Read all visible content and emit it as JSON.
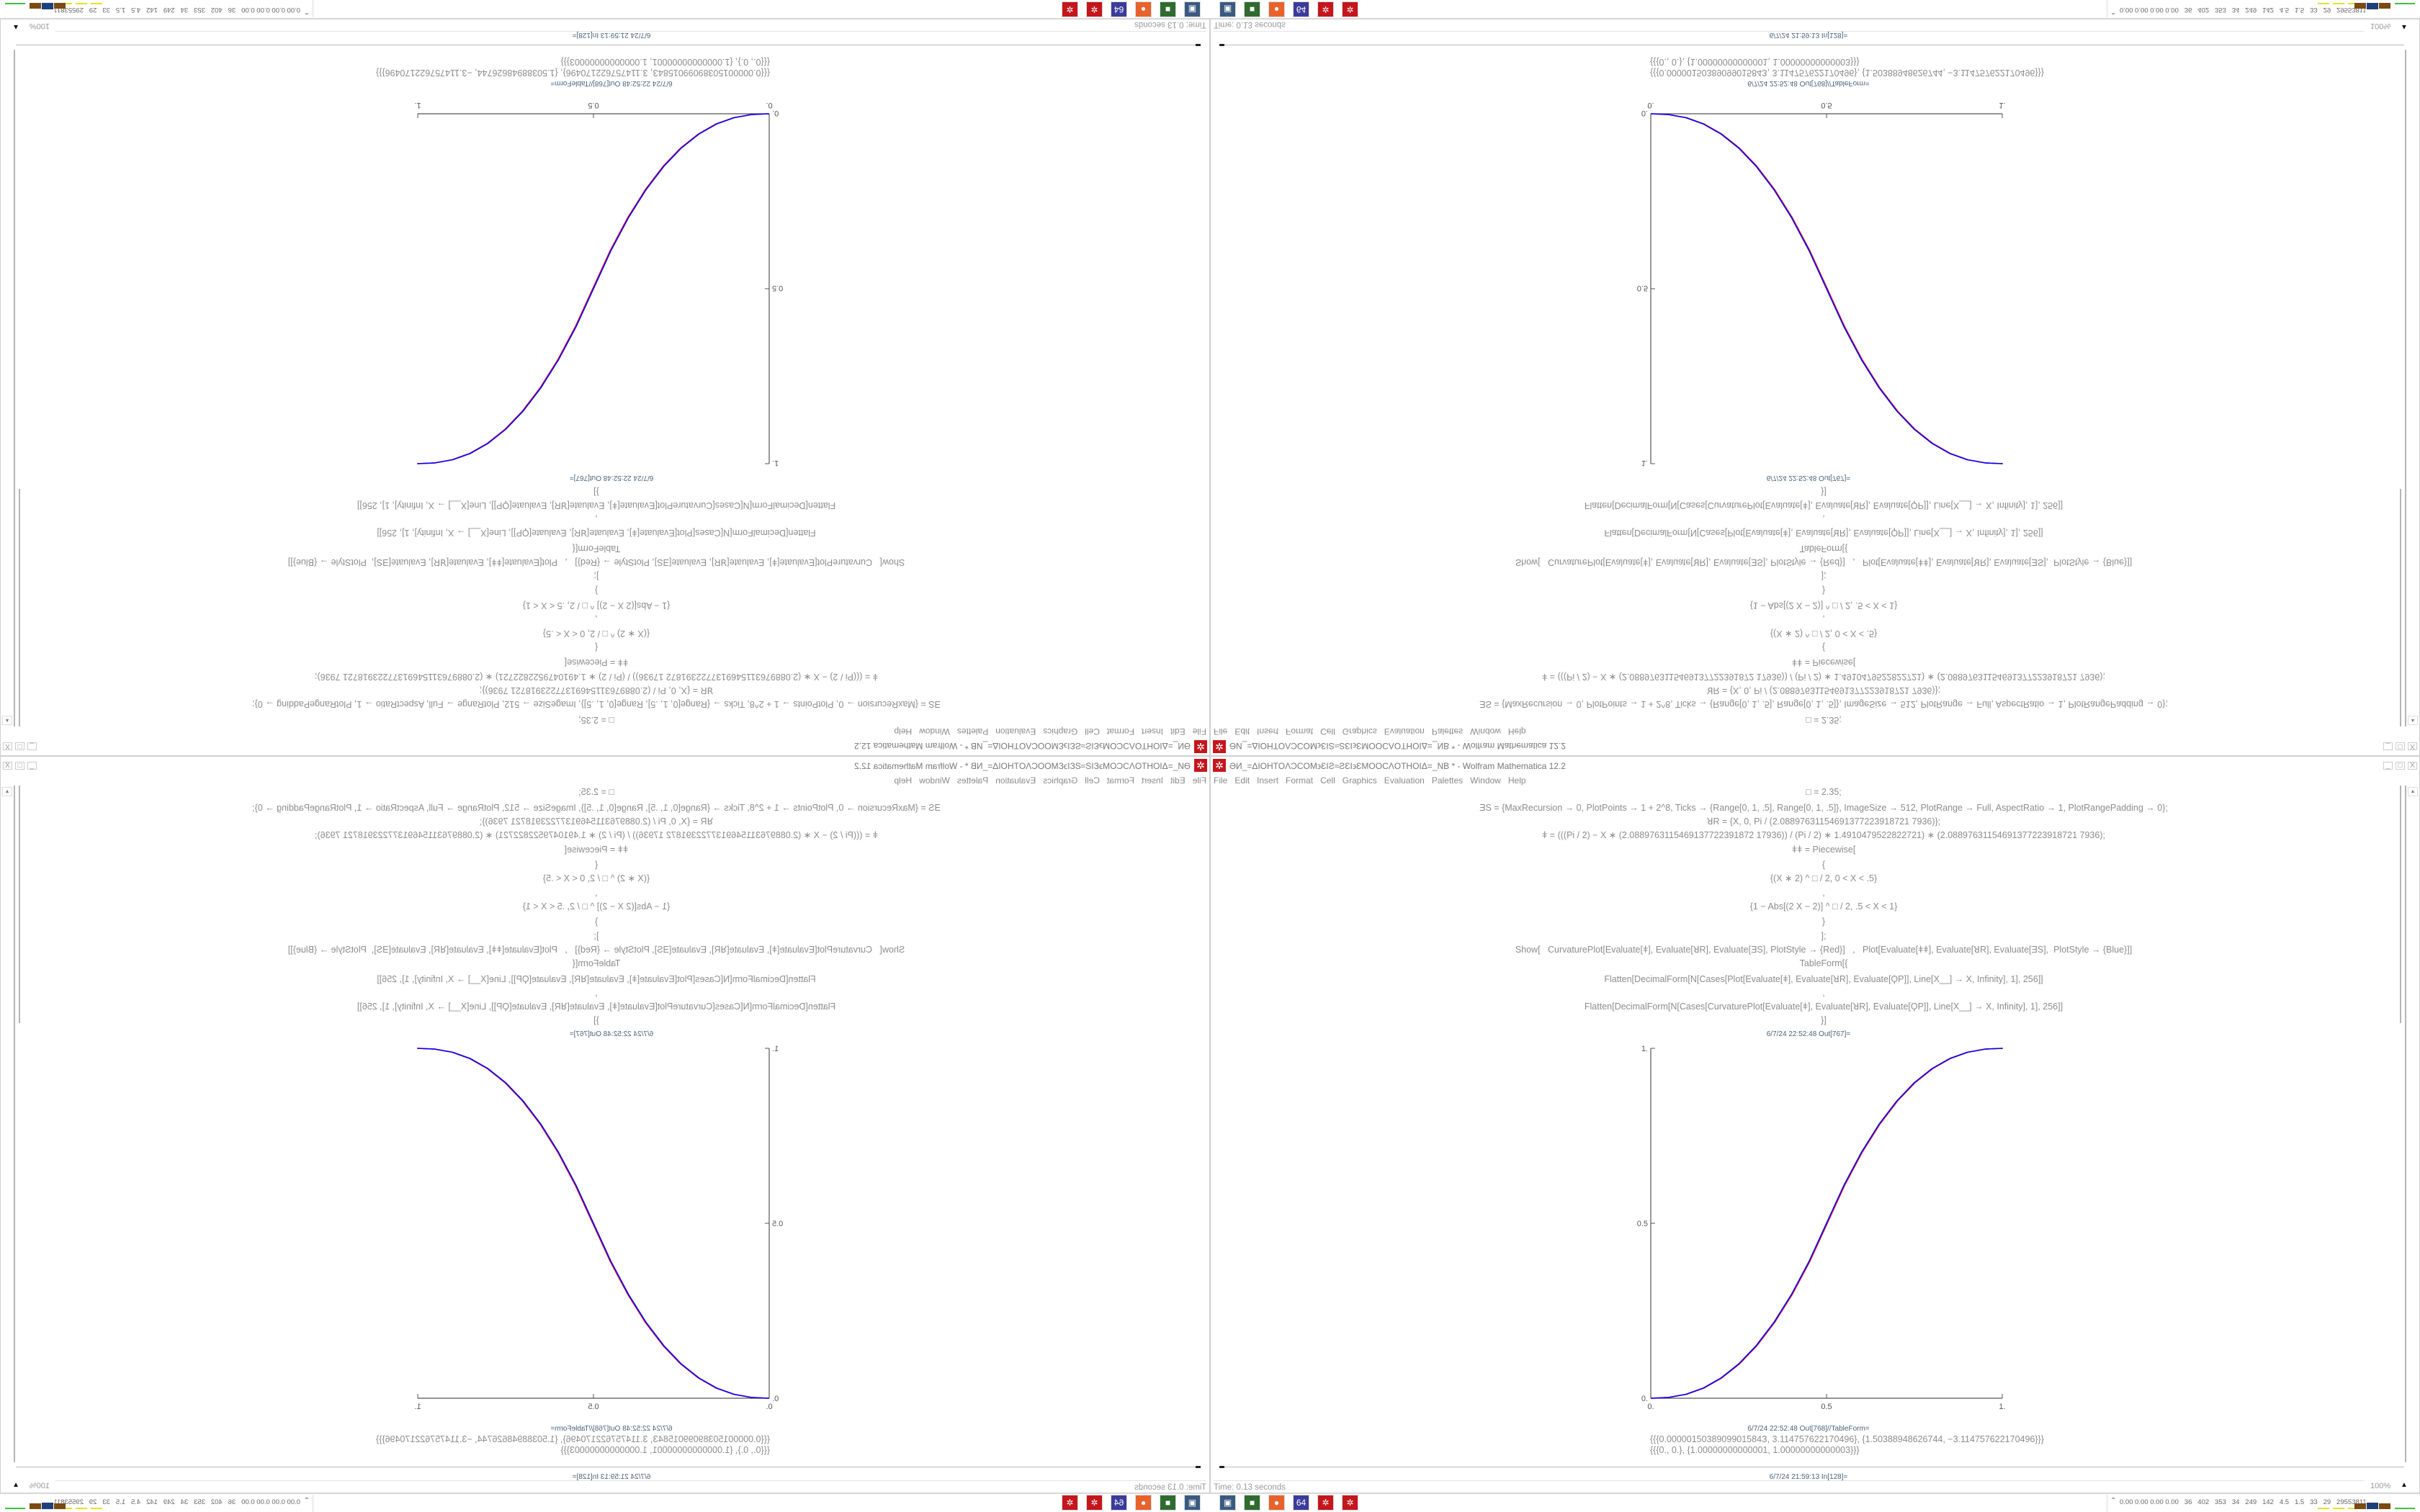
{
  "window": {
    "title": "ƏИ_=ΔIOHTOΛϽCOM϶ƐIƧ≈ƧƐI϶ƐMOOCΛOTHOIΔ=_NB * - Wolfram Mathematica 12.2",
    "app_icon": "mathematica-icon",
    "controls": {
      "minimize": "_",
      "maximize": "□",
      "close": "X"
    },
    "menu": [
      "File",
      "Edit",
      "Insert",
      "Format",
      "Cell",
      "Graphics",
      "Evaluation",
      "Palettes",
      "Window",
      "Help"
    ]
  },
  "notebook": {
    "code": [
      "□ = 2.35;",
      "ƎS = {MaxRecursion → 0, PlotPoints → 1 + 2^8, Ticks → {Range[0, 1, .5], Range[0, 1, .5]}, ImageSize → 512, PlotRange → Full, AspectRatio → 1, PlotRangePadding → 0};",
      "ꓤR = {X, 0, Pi / (2.08897631154691377223918721 7936)};",
      "ǂ = (((Pi / 2) − X ∗ (2.0889763115469137722391872 17936)) / (Pi / 2) ∗ 1.4910479522822721) ∗ (2.08897631154691377223918721 7936);",
      "ǂǂ = Piecewise[",
      "{",
      "{(X ∗ 2) ^ □ / 2, 0 < X < .5}",
      ",",
      "{1 − Abs[(2 X − 2)] ^ □ / 2, .5 < X < 1}",
      "}",
      "];",
      "Show[   CurvaturePlot[Evaluate[ǂ], Evaluate[ꓤR], Evaluate[ƎS], PlotStyle → {Red}]   ,   Plot[Evaluate[ǂǂ], Evaluate[ꓤR], Evaluate[ƎS],  PlotStyle → {Blue}]]",
      "TableForm[{",
      "Flatten[DecimalForm[N[Cases[Plot[Evaluate[ǂ], Evaluate[ꓤR], Evaluate[ϘP]], Line[X__] → X, Infinity], 1], 256]]",
      ",",
      "Flatten[DecimalForm[N[Cases[CurvaturePlot[Evaluate[ǂ], Evaluate[ꓤR], Evaluate[ϘP]], Line[X__] → X, Infinity], 1], 256]]",
      "}]"
    ],
    "out_plot_label": "6/7/24 22:52:48 Out[767]=",
    "out_table_label": "6/7/24 22:52:48 Out[768]//TableForm=",
    "out_table_rows": [
      "{{{0.0000015038909901584З, 3.114757622170496}, {1.50388948626744, −3.114757622170496}}}",
      "{{{0., 0.}, {1.00000000000001, 1.00000000000003}}}"
    ],
    "in_label": "6/7/24 21:59:13 In[128]="
  },
  "status": {
    "time": "Time: 0.13 seconds",
    "zoom": "100%"
  },
  "taskbar": {
    "icons": [
      {
        "name": "remote-desktop-icon",
        "glyph": "▣",
        "color": "#3a5a80"
      },
      {
        "name": "terminal-icon",
        "glyph": "■",
        "color": "#2f6b2f"
      },
      {
        "name": "firefox-icon",
        "glyph": "●",
        "color": "#e8622c"
      },
      {
        "name": "floppy-64-icon",
        "glyph": "64",
        "color": "#3b3b9a"
      },
      {
        "name": "mathematica-icon",
        "glyph": "✲",
        "color": "#c4161c"
      },
      {
        "name": "mathematica-icon",
        "glyph": "✲",
        "color": "#c4161c"
      }
    ],
    "tray_text": "0.00 0.00 0.00 0.00   36   402   353   34   249   142   4.5   1.5   33   29   29553811",
    "meter_colors": [
      "#e8e020",
      "#e8e020",
      "#e8e020",
      "#7a4a10",
      "#1d3f7a",
      "#7a4a10",
      "#40c040"
    ]
  },
  "chart_data": {
    "type": "line",
    "xlim": [
      0,
      1
    ],
    "ylim": [
      0,
      1
    ],
    "x_ticks": [
      "0.",
      "0.5",
      "1."
    ],
    "y_ticks": [
      "0.",
      "0.5",
      "1."
    ],
    "grid": false,
    "series": [
      {
        "color": "#ff0000",
        "x": [
          0,
          0.05,
          0.1,
          0.15,
          0.2,
          0.25,
          0.3,
          0.35,
          0.4,
          0.45,
          0.5,
          0.55,
          0.6,
          0.65,
          0.7,
          0.75,
          0.8,
          0.85,
          0.9,
          0.95,
          1
        ],
        "y": [
          0,
          0.0022,
          0.0114,
          0.0295,
          0.058,
          0.098,
          0.1505,
          0.2163,
          0.296,
          0.3903,
          0.5,
          0.6097,
          0.704,
          0.7837,
          0.8495,
          0.902,
          0.942,
          0.9705,
          0.9886,
          0.9978,
          1
        ]
      },
      {
        "color": "#0000ff",
        "x": [
          0,
          0.05,
          0.1,
          0.15,
          0.2,
          0.25,
          0.3,
          0.35,
          0.4,
          0.45,
          0.5,
          0.55,
          0.6,
          0.65,
          0.7,
          0.75,
          0.8,
          0.85,
          0.9,
          0.95,
          1
        ],
        "y": [
          0,
          0.0022,
          0.0114,
          0.0295,
          0.058,
          0.098,
          0.1505,
          0.2163,
          0.296,
          0.3903,
          0.5,
          0.6097,
          0.704,
          0.7837,
          0.8495,
          0.902,
          0.942,
          0.9705,
          0.9886,
          0.9978,
          1
        ]
      }
    ]
  }
}
